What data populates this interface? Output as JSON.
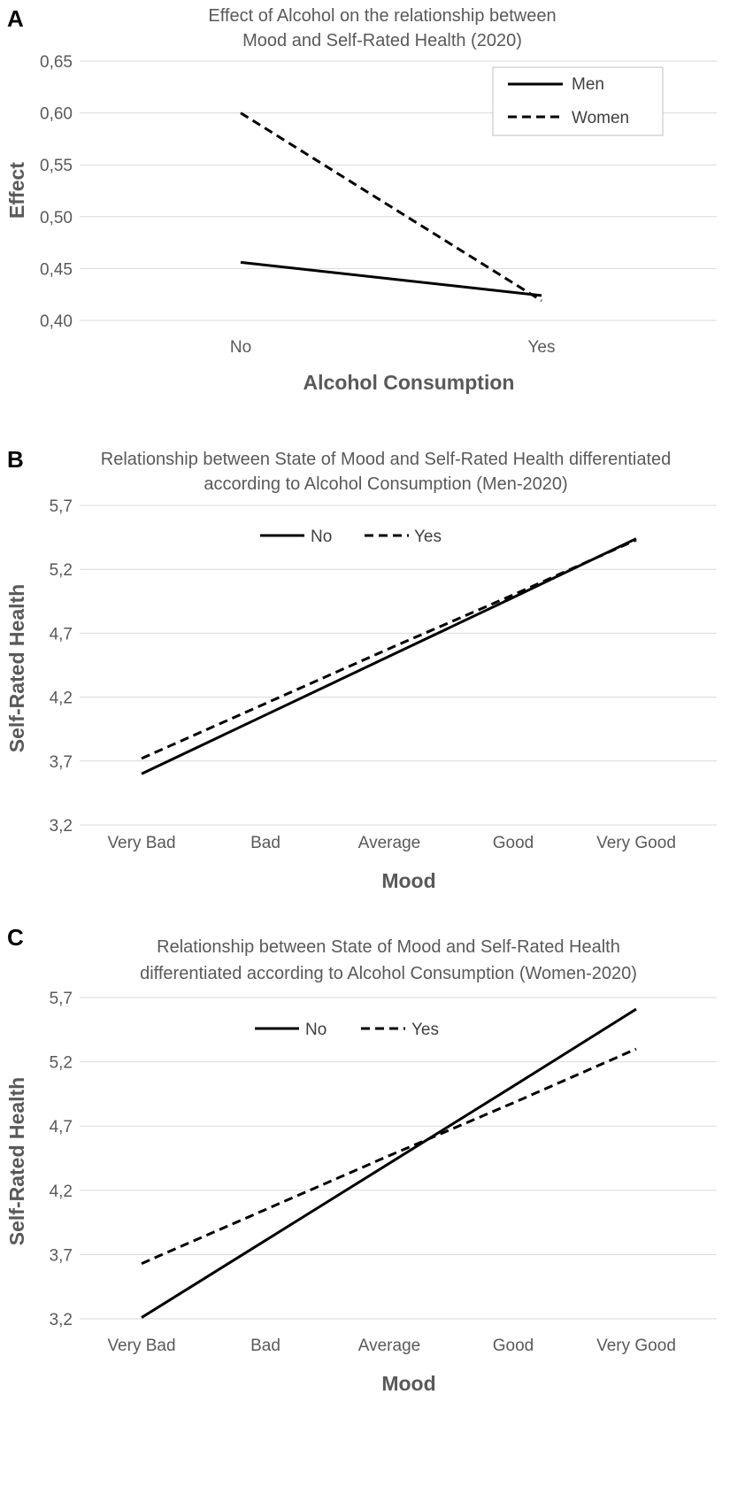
{
  "chart_data": [
    {
      "panel": "A",
      "type": "line",
      "title": [
        "Effect of Alcohol on the relationship between",
        "Mood and Self-Rated Health (2020)"
      ],
      "xlabel": "Alcohol Consumption",
      "ylabel": "Effect",
      "categories": [
        "No",
        "Yes"
      ],
      "ylim": [
        0.4,
        0.65
      ],
      "yticks": [
        "0,40",
        "0,45",
        "0,50",
        "0,55",
        "0,60",
        "0,65"
      ],
      "grid": true,
      "legend": "top-right-boxed",
      "series": [
        {
          "name": "Men",
          "style": "solid",
          "values": [
            0.456,
            0.424
          ]
        },
        {
          "name": "Women",
          "style": "dashed",
          "values": [
            0.6,
            0.419
          ]
        }
      ]
    },
    {
      "panel": "B",
      "type": "line",
      "title": [
        "Relationship between State of Mood and Self-Rated Health differentiated",
        "according to Alcohol Consumption (Men-2020)"
      ],
      "xlabel": "Mood",
      "ylabel": "Self-Rated Health",
      "categories": [
        "Very Bad",
        "Bad",
        "Average",
        "Good",
        "Very Good"
      ],
      "ylim": [
        3.2,
        5.7
      ],
      "yticks": [
        "3,2",
        "3,7",
        "4,2",
        "4,7",
        "5,2",
        "5,7"
      ],
      "grid": true,
      "legend": "top-center",
      "series": [
        {
          "name": "No",
          "style": "solid",
          "values": [
            3.6,
            4.06,
            4.52,
            4.98,
            5.44
          ]
        },
        {
          "name": "Yes",
          "style": "dashed",
          "values": [
            3.72,
            4.15,
            4.58,
            5.0,
            5.43
          ]
        }
      ]
    },
    {
      "panel": "C",
      "type": "line",
      "title": [
        "Relationship between State of Mood and Self-Rated Health",
        "differentiated according to Alcohol Consumption (Women-2020)"
      ],
      "xlabel": "Mood",
      "ylabel": "Self-Rated Health",
      "categories": [
        "Very Bad",
        "Bad",
        "Average",
        "Good",
        "Very Good"
      ],
      "ylim": [
        3.2,
        5.7
      ],
      "yticks": [
        "3,2",
        "3,7",
        "4,2",
        "4,7",
        "5,2",
        "5,7"
      ],
      "grid": true,
      "legend": "top-center",
      "series": [
        {
          "name": "No",
          "style": "solid",
          "values": [
            3.21,
            3.81,
            4.41,
            5.01,
            5.61
          ]
        },
        {
          "name": "Yes",
          "style": "dashed",
          "values": [
            3.63,
            4.05,
            4.47,
            4.88,
            5.3
          ]
        }
      ]
    }
  ]
}
